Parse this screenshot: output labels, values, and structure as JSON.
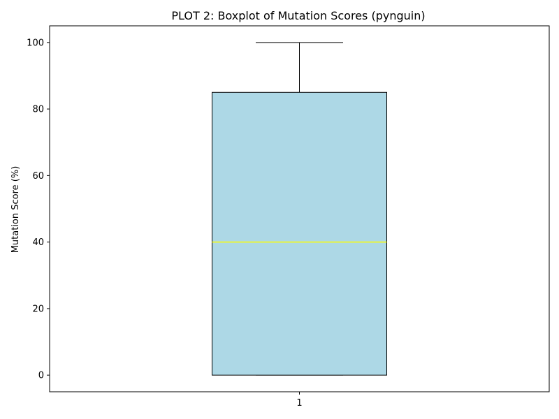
{
  "chart_data": {
    "type": "box",
    "title": "PLOT 2: Boxplot of Mutation Scores (pynguin)",
    "xlabel": "",
    "ylabel": "Mutation Score (%)",
    "categories": [
      "1"
    ],
    "boxes": [
      {
        "category": "1",
        "whisker_low": 0,
        "q1": 0,
        "median": 40,
        "q3": 85,
        "whisker_high": 100
      }
    ],
    "ylim": [
      -5,
      105
    ],
    "yticks": [
      0,
      20,
      40,
      60,
      80,
      100
    ],
    "grid": false,
    "colors": {
      "box_fill": "#add8e6",
      "box_edge": "#000000",
      "median": "#ffff00",
      "whisker": "#000000"
    }
  }
}
